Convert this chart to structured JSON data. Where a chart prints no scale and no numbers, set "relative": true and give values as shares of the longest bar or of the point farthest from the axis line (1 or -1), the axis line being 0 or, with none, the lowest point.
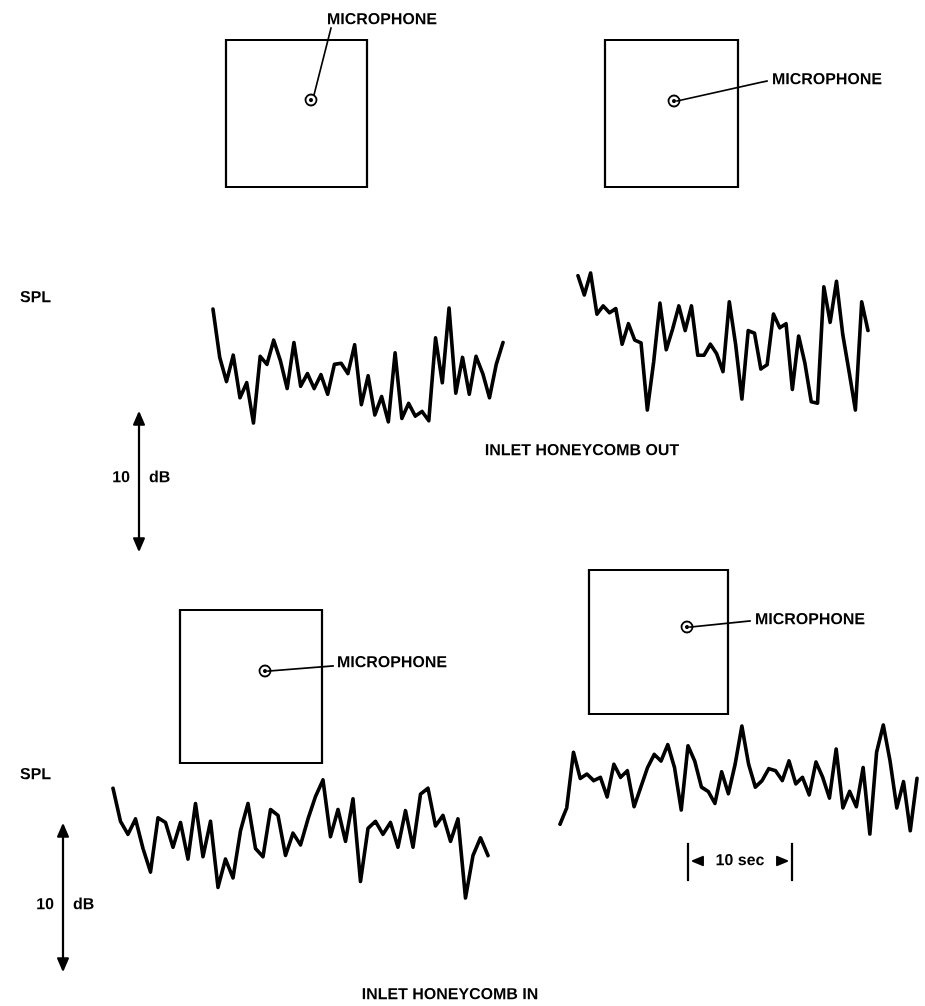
{
  "chart_data": [
    {
      "type": "line",
      "relative": true,
      "ylabel": "SPL",
      "annotations": [
        "MICROPHONE",
        "10",
        "dB"
      ],
      "categories": [
        null,
        null,
        null,
        null,
        null,
        null,
        null,
        null,
        null,
        null,
        null,
        null,
        null,
        null,
        null,
        null,
        null,
        null,
        null,
        null,
        null,
        null,
        null,
        null,
        null,
        null,
        null,
        null,
        null,
        null,
        null,
        null,
        null,
        null,
        null,
        null,
        null,
        null,
        null,
        null,
        null,
        null,
        null,
        null
      ],
      "series": [
        {
          "color": "#000000",
          "values": [
            0.99,
            0.57,
            0.36,
            0.59,
            0.22,
            0.35,
            0,
            0.58,
            0.51,
            0.72,
            0.54,
            0.3,
            0.7,
            0.32,
            0.43,
            0.3,
            0.42,
            0.25,
            0.51,
            0.52,
            0.43,
            0.68,
            0.16,
            0.41,
            0.07,
            0.23,
            0.01,
            0.61,
            0.04,
            0.17,
            0.06,
            0.1,
            0.02,
            0.74,
            0.35,
            1.0,
            0.26,
            0.57,
            0.25,
            0.58,
            0.43,
            0.22,
            0.51,
            0.7
          ]
        }
      ]
    },
    {
      "type": "line",
      "relative": true,
      "annotations": [
        "MICROPHONE",
        "INLET HONEYCOMB OUT"
      ],
      "categories": [
        null,
        null,
        null,
        null,
        null,
        null,
        null,
        null,
        null,
        null,
        null,
        null,
        null,
        null,
        null,
        null,
        null,
        null,
        null,
        null,
        null,
        null,
        null,
        null,
        null,
        null,
        null,
        null,
        null,
        null,
        null,
        null,
        null,
        null,
        null,
        null,
        null,
        null,
        null,
        null,
        null,
        null,
        null,
        null,
        null,
        null,
        null
      ],
      "series": [
        {
          "color": "#000000",
          "values": [
            0.98,
            0.84,
            1.0,
            0.7,
            0.76,
            0.71,
            0.74,
            0.48,
            0.63,
            0.51,
            0.49,
            0,
            0.35,
            0.78,
            0.44,
            0.59,
            0.76,
            0.58,
            0.76,
            0.4,
            0.4,
            0.48,
            0.41,
            0.28,
            0.79,
            0.48,
            0.08,
            0.58,
            0.56,
            0.3,
            0.33,
            0.7,
            0.6,
            0.63,
            0.15,
            0.54,
            0.34,
            0.06,
            0.05,
            0.9,
            0.64,
            0.94,
            0.55,
            0.28,
            0,
            0.79,
            0.58
          ]
        }
      ]
    },
    {
      "type": "line",
      "relative": true,
      "ylabel": "SPL",
      "annotations": [
        "MICROPHONE",
        "10",
        "dB",
        "INLET HONEYCOMB IN"
      ],
      "categories": [
        null,
        null,
        null,
        null,
        null,
        null,
        null,
        null,
        null,
        null,
        null,
        null,
        null,
        null,
        null,
        null,
        null,
        null,
        null,
        null,
        null,
        null,
        null,
        null,
        null,
        null,
        null,
        null,
        null,
        null,
        null,
        null,
        null,
        null,
        null,
        null,
        null,
        null,
        null,
        null,
        null,
        null,
        null,
        null,
        null,
        null,
        null,
        null,
        null,
        null,
        null
      ],
      "series": [
        {
          "color": "#000000",
          "values": [
            0.93,
            0.65,
            0.54,
            0.67,
            0.42,
            0.22,
            0.68,
            0.64,
            0.43,
            0.64,
            0.33,
            0.8,
            0.35,
            0.65,
            0.09,
            0.33,
            0.17,
            0.57,
            0.8,
            0.42,
            0.35,
            0.75,
            0.7,
            0.36,
            0.55,
            0.45,
            0.67,
            0.86,
            1.0,
            0.52,
            0.75,
            0.48,
            0.84,
            0.14,
            0.59,
            0.65,
            0.54,
            0.64,
            0.43,
            0.74,
            0.43,
            0.88,
            0.93,
            0.61,
            0.7,
            0.48,
            0.67,
            0,
            0.36,
            0.51,
            0.36
          ]
        }
      ]
    },
    {
      "type": "line",
      "relative": true,
      "annotations": [
        "MICROPHONE",
        "10 sec"
      ],
      "categories": [
        null,
        null,
        null,
        null,
        null,
        null,
        null,
        null,
        null,
        null,
        null,
        null,
        null,
        null,
        null,
        null,
        null,
        null,
        null,
        null,
        null,
        null,
        null,
        null,
        null,
        null,
        null,
        null,
        null,
        null,
        null,
        null,
        null,
        null,
        null,
        null,
        null,
        null,
        null,
        null,
        null,
        null,
        null,
        null,
        null,
        null,
        null,
        null,
        null,
        null,
        null,
        null,
        null,
        null
      ],
      "series": [
        {
          "color": "#000000",
          "values": [
            0.09,
            0.24,
            0.75,
            0.51,
            0.55,
            0.49,
            0.52,
            0.34,
            0.64,
            0.52,
            0.58,
            0.25,
            0.43,
            0.61,
            0.73,
            0.67,
            0.82,
            0.61,
            0.22,
            0.81,
            0.67,
            0.43,
            0.39,
            0.28,
            0.57,
            0.37,
            0.64,
            0.99,
            0.64,
            0.43,
            0.49,
            0.6,
            0.58,
            0.49,
            0.67,
            0.46,
            0.52,
            0.36,
            0.66,
            0.52,
            0.33,
            0.78,
            0.24,
            0.39,
            0.25,
            0.61,
            0,
            0.75,
            1.0,
            0.67,
            0.24,
            0.48,
            0.03,
            0.51
          ]
        }
      ]
    }
  ]
}
